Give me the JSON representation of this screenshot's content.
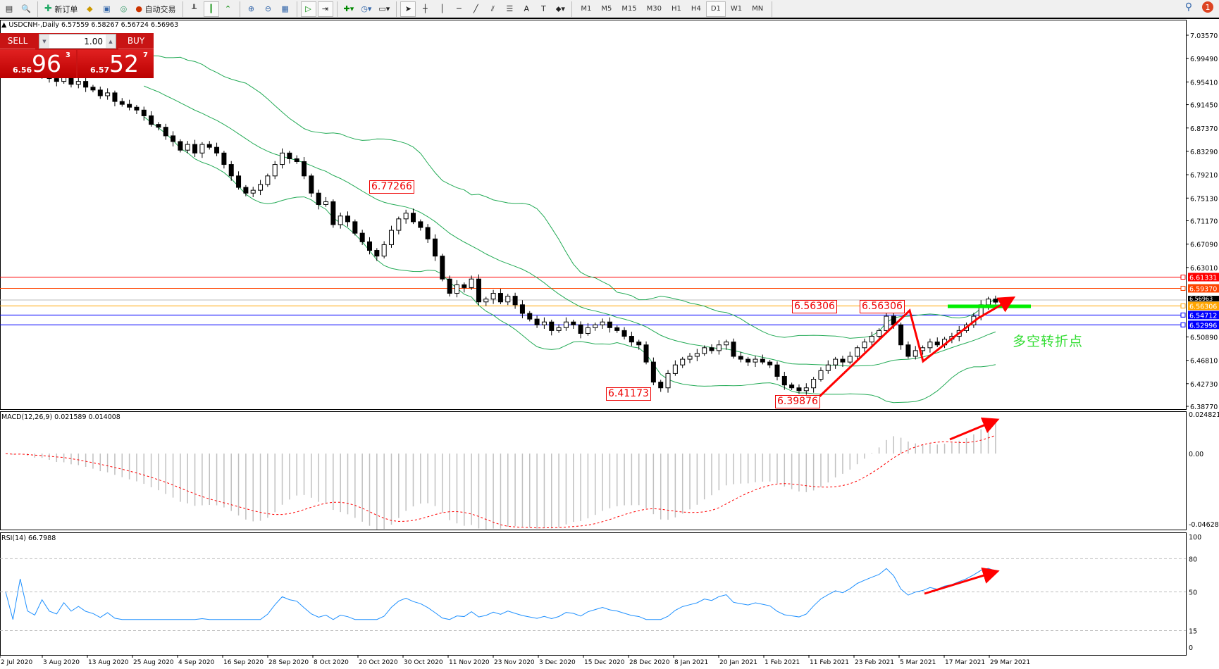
{
  "toolbar": {
    "new_order": "新订单",
    "auto_trading": "自动交易",
    "timeframes": [
      "M1",
      "M5",
      "M15",
      "M30",
      "H1",
      "H4",
      "D1",
      "W1",
      "MN"
    ],
    "active_timeframe": "D1",
    "notification_count": "1"
  },
  "symbol_header": "USDCNH-,Daily  6.57559 6.58267 6.56724 6.56963",
  "trade_panel": {
    "sell_label": "SELL",
    "buy_label": "BUY",
    "lot": "1.00",
    "sell_small": "6.56",
    "sell_big": "96",
    "sell_pip": "3",
    "buy_small": "6.57",
    "buy_big": "52",
    "buy_pip": "7"
  },
  "price_axis": [
    "7.03570",
    "6.99490",
    "6.95410",
    "6.91450",
    "6.87370",
    "6.83290",
    "6.79210",
    "6.75130",
    "6.71170",
    "6.67090",
    "6.63010",
    "6.50890",
    "6.46810",
    "6.42730",
    "6.38770"
  ],
  "hlines": [
    {
      "price": "6.61331",
      "color": "#ff0000"
    },
    {
      "price": "6.59370",
      "color": "#ff4500"
    },
    {
      "price": "6.56306",
      "color": "#ffa500"
    },
    {
      "price": "6.54712",
      "color": "#0000ff"
    },
    {
      "price": "6.52996",
      "color": "#0000ff"
    }
  ],
  "current_price": "6.56963",
  "annotations": {
    "high1": "6.77266",
    "low1": "6.41173",
    "low2": "6.39876",
    "res1": "6.56306",
    "res2": "6.56306",
    "note": "多空转折点"
  },
  "colors": {
    "bands": "#22aa55",
    "macd_hist": "#c0c0c0",
    "macd_signal": "#ff0000",
    "rsi": "#1e90ff",
    "arrows": "#ff0000",
    "marker": "#00ee00"
  },
  "chart_data": {
    "type": "candlestick",
    "closes": [
      6.985,
      6.975,
      6.99,
      6.97,
      6.965,
      6.975,
      6.96,
      6.955,
      6.965,
      6.95,
      6.955,
      6.945,
      6.94,
      6.93,
      6.935,
      6.92,
      6.915,
      6.91,
      6.905,
      6.895,
      6.88,
      6.875,
      6.86,
      6.85,
      6.835,
      6.845,
      6.83,
      6.845,
      6.84,
      6.83,
      6.81,
      6.79,
      6.77,
      6.76,
      6.765,
      6.775,
      6.79,
      6.81,
      6.83,
      6.82,
      6.815,
      6.79,
      6.76,
      6.74,
      6.745,
      6.705,
      6.72,
      6.71,
      6.69,
      6.675,
      6.66,
      6.65,
      6.67,
      6.695,
      6.715,
      6.725,
      6.71,
      6.7,
      6.68,
      6.65,
      6.61,
      6.585,
      6.6,
      6.595,
      6.61,
      6.57,
      6.575,
      6.585,
      6.57,
      6.58,
      6.565,
      6.55,
      6.54,
      6.53,
      6.535,
      6.52,
      6.525,
      6.535,
      6.53,
      6.515,
      6.525,
      6.53,
      6.535,
      6.525,
      6.52,
      6.51,
      6.5,
      6.495,
      6.465,
      6.43,
      6.42,
      6.445,
      6.46,
      6.47,
      6.475,
      6.48,
      6.49,
      6.485,
      6.495,
      6.5,
      6.475,
      6.47,
      6.465,
      6.47,
      6.465,
      6.46,
      6.44,
      6.425,
      6.42,
      6.415,
      6.42,
      6.435,
      6.45,
      6.46,
      6.47,
      6.465,
      6.475,
      6.49,
      6.5,
      6.51,
      6.52,
      6.545,
      6.53,
      6.495,
      6.475,
      6.485,
      6.49,
      6.5,
      6.495,
      6.505,
      6.51,
      6.52,
      6.53,
      6.545,
      6.565,
      6.575,
      6.5696
    ],
    "price_range": [
      6.3877,
      7.0357
    ],
    "dates": [
      "2 Jul 2020",
      "3 Aug 2020",
      "13 Aug 2020",
      "25 Aug 2020",
      "4 Sep 2020",
      "16 Sep 2020",
      "28 Sep 2020",
      "8 Oct 2020",
      "20 Oct 2020",
      "30 Oct 2020",
      "11 Nov 2020",
      "23 Nov 2020",
      "3 Dec 2020",
      "15 Dec 2020",
      "28 Dec 2020",
      "8 Jan 2021",
      "20 Jan 2021",
      "1 Feb 2021",
      "11 Feb 2021",
      "23 Feb 2021",
      "5 Mar 2021",
      "17 Mar 2021",
      "29 Mar 2021"
    ],
    "macd": {
      "label": "MACD(12,26,9) 0.021589 0.014008",
      "axis": [
        "0.024821",
        "0.00",
        "-0.046282"
      ],
      "range": [
        -0.046282,
        0.024821
      ]
    },
    "rsi": {
      "label": "RSI(14) 66.7988",
      "axis": [
        "100",
        "80",
        "50",
        "15",
        "0"
      ],
      "levels": [
        80,
        50,
        15
      ]
    }
  }
}
